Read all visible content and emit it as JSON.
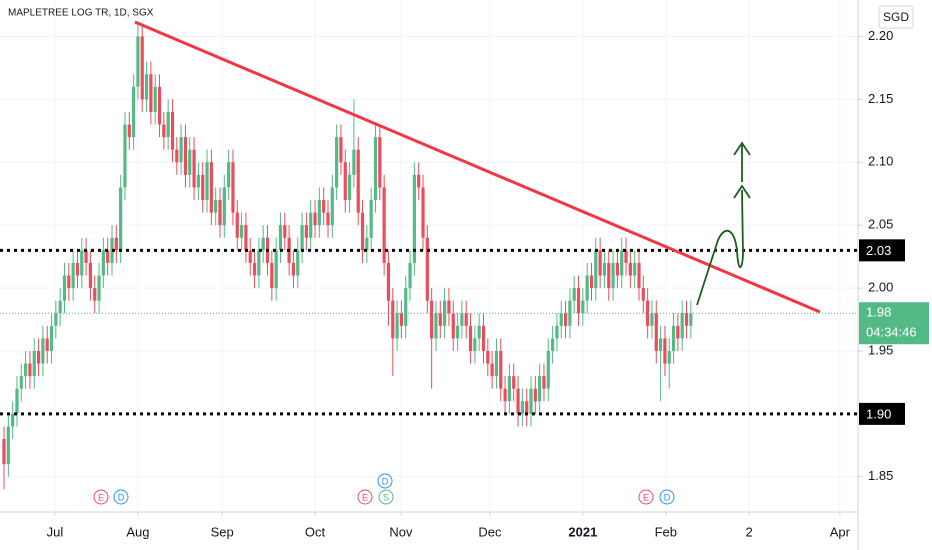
{
  "chart_data": {
    "type": "candlestick",
    "title": "MAPLETREE LOG TR, 1D, SGX",
    "currency": "SGD",
    "up_color": "#53b987",
    "down_color": "#eb4d5c",
    "xlim": [
      -0.93,
      197.7
    ],
    "ylim": [
      1.822,
      2.229
    ],
    "yticks": [
      {
        "value": 2.2,
        "label": "2.20"
      },
      2.15,
      {
        "value": 2.1,
        "label": "2.10"
      },
      2.05,
      {
        "value": 2.0,
        "label": "2.00"
      },
      1.95,
      1.85
    ],
    "xticks": [
      {
        "value": 11.8,
        "label": "Jul"
      },
      {
        "value": 31.0,
        "label": "Aug"
      },
      {
        "value": 50.5,
        "label": "Sep"
      },
      {
        "value": 72.0,
        "label": "Oct"
      },
      {
        "value": 91.9,
        "label": "Nov"
      },
      {
        "value": 112.5,
        "label": "Dec"
      },
      {
        "value": 134,
        "label": "2021"
      },
      {
        "value": 153.2,
        "label": "Feb"
      },
      {
        "value": 172.5,
        "label": "2"
      },
      {
        "value": 193.5,
        "label": "Apr"
      }
    ],
    "grid": true,
    "series": [
      {
        "open": [
          1.88,
          1.86,
          1.89,
          1.9,
          1.92,
          1.93,
          1.94,
          1.93,
          1.95,
          1.94,
          1.96,
          1.95,
          1.97,
          1.98,
          1.99,
          2.01,
          2.0,
          2.02,
          2.01,
          2.03,
          2.02,
          2.0,
          1.99,
          2.01,
          2.03,
          2.02,
          2.04,
          2.03,
          2.08,
          2.13,
          2.12,
          2.16,
          2.2,
          2.15,
          2.17,
          2.14,
          2.16,
          2.13,
          2.12,
          2.14,
          2.11,
          2.1,
          2.12,
          2.09,
          2.11,
          2.08,
          2.09,
          2.07,
          2.1,
          2.06,
          2.07,
          2.05,
          2.08,
          2.1,
          2.06,
          2.04,
          2.05,
          2.03,
          2.02,
          2.01,
          2.03,
          2.04,
          2.02,
          2.0,
          2.03,
          2.05,
          2.04,
          2.02,
          2.01,
          2.03,
          2.05,
          2.04,
          2.06,
          2.05,
          2.07,
          2.06,
          2.05,
          2.08,
          2.12,
          2.1,
          2.07,
          2.09,
          2.11,
          2.06,
          2.03,
          2.04,
          2.07,
          2.12,
          2.08,
          2.02,
          1.99,
          1.96,
          1.98,
          1.97,
          2.0,
          2.02,
          2.09,
          2.08,
          2.04,
          1.99,
          1.96,
          1.98,
          1.97,
          1.99,
          1.98,
          1.96,
          1.97,
          1.98,
          1.97,
          1.95,
          1.96,
          1.97,
          1.95,
          1.94,
          1.93,
          1.95,
          1.92,
          1.91,
          1.93,
          1.92,
          1.9,
          1.91,
          1.9,
          1.92,
          1.91,
          1.93,
          1.92,
          1.95,
          1.96,
          1.97,
          1.98,
          1.97,
          1.99,
          2.0,
          1.98,
          1.99,
          2.01,
          2.0,
          2.03,
          2.01,
          2.02,
          2.0,
          2.02,
          2.01,
          2.03,
          2.02,
          2.01,
          2.02,
          2.0,
          1.99,
          1.97,
          1.98,
          1.95,
          1.96,
          1.94,
          1.95,
          1.97,
          1.96,
          1.98,
          1.97
        ],
        "high": [
          1.89,
          1.9,
          1.91,
          1.93,
          1.94,
          1.95,
          1.95,
          1.96,
          1.96,
          1.97,
          1.97,
          1.98,
          1.99,
          2.0,
          2.02,
          2.02,
          2.03,
          2.03,
          2.04,
          2.04,
          2.03,
          2.01,
          2.02,
          2.04,
          2.04,
          2.05,
          2.05,
          2.09,
          2.14,
          2.14,
          2.17,
          2.21,
          2.21,
          2.18,
          2.18,
          2.17,
          2.17,
          2.14,
          2.15,
          2.15,
          2.12,
          2.13,
          2.13,
          2.12,
          2.12,
          2.1,
          2.1,
          2.11,
          2.11,
          2.08,
          2.08,
          2.09,
          2.11,
          2.11,
          2.07,
          2.06,
          2.06,
          2.04,
          2.03,
          2.04,
          2.05,
          2.05,
          2.03,
          2.04,
          2.06,
          2.06,
          2.05,
          2.03,
          2.04,
          2.06,
          2.06,
          2.07,
          2.07,
          2.08,
          2.08,
          2.07,
          2.09,
          2.13,
          2.13,
          2.11,
          2.1,
          2.15,
          2.12,
          2.07,
          2.05,
          2.08,
          2.13,
          2.13,
          2.09,
          2.03,
          2.0,
          1.99,
          1.99,
          2.01,
          2.03,
          2.1,
          2.1,
          2.09,
          2.05,
          2.0,
          1.99,
          1.99,
          2.0,
          2.0,
          1.99,
          1.98,
          1.99,
          1.99,
          1.98,
          1.97,
          1.98,
          1.98,
          1.96,
          1.95,
          1.96,
          1.96,
          1.93,
          1.94,
          1.94,
          1.93,
          1.92,
          1.92,
          1.93,
          1.93,
          1.94,
          1.94,
          1.96,
          1.97,
          1.98,
          1.99,
          1.99,
          2.0,
          2.01,
          2.01,
          2.0,
          2.02,
          2.02,
          2.04,
          2.04,
          2.03,
          2.03,
          2.03,
          2.03,
          2.04,
          2.04,
          2.03,
          2.03,
          2.03,
          2.01,
          2.0,
          1.99,
          1.99,
          1.97,
          1.97,
          1.96,
          1.98,
          1.98,
          1.99,
          1.99,
          1.99
        ],
        "low": [
          1.84,
          1.85,
          1.88,
          1.89,
          1.91,
          1.92,
          1.92,
          1.92,
          1.93,
          1.93,
          1.94,
          1.94,
          1.96,
          1.97,
          1.98,
          1.99,
          1.99,
          2.0,
          2.0,
          2.01,
          1.99,
          1.98,
          1.98,
          2.0,
          2.01,
          2.01,
          2.02,
          2.02,
          2.07,
          2.11,
          2.11,
          2.15,
          2.14,
          2.14,
          2.13,
          2.13,
          2.12,
          2.11,
          2.11,
          2.1,
          2.09,
          2.09,
          2.08,
          2.08,
          2.07,
          2.07,
          2.06,
          2.06,
          2.05,
          2.05,
          2.04,
          2.04,
          2.07,
          2.05,
          2.03,
          2.03,
          2.02,
          2.01,
          2.0,
          2.0,
          2.02,
          2.01,
          1.99,
          1.99,
          2.02,
          2.03,
          2.01,
          2.0,
          2.0,
          2.02,
          2.03,
          2.03,
          2.04,
          2.04,
          2.05,
          2.04,
          2.04,
          2.07,
          2.09,
          2.06,
          2.06,
          2.08,
          2.05,
          2.02,
          2.02,
          2.03,
          2.06,
          2.07,
          2.01,
          1.97,
          1.93,
          1.95,
          1.96,
          1.96,
          1.99,
          2.01,
          2.07,
          2.03,
          1.98,
          1.92,
          1.95,
          1.96,
          1.96,
          1.97,
          1.95,
          1.95,
          1.96,
          1.96,
          1.94,
          1.94,
          1.95,
          1.94,
          1.93,
          1.92,
          1.92,
          1.91,
          1.9,
          1.9,
          1.91,
          1.89,
          1.89,
          1.89,
          1.89,
          1.9,
          1.9,
          1.91,
          1.91,
          1.94,
          1.95,
          1.96,
          1.96,
          1.96,
          1.98,
          1.97,
          1.97,
          1.98,
          1.99,
          1.99,
          2.0,
          2.0,
          1.99,
          1.99,
          2.0,
          2.0,
          2.01,
          2.0,
          2.0,
          1.99,
          1.98,
          1.96,
          1.96,
          1.94,
          1.91,
          1.93,
          1.92,
          1.94,
          1.95,
          1.95,
          1.96,
          1.96
        ],
        "close": [
          1.86,
          1.89,
          1.9,
          1.92,
          1.93,
          1.94,
          1.93,
          1.95,
          1.94,
          1.96,
          1.95,
          1.97,
          1.98,
          1.99,
          2.01,
          2.0,
          2.02,
          2.01,
          2.03,
          2.02,
          2.0,
          1.99,
          2.01,
          2.03,
          2.02,
          2.04,
          2.03,
          2.08,
          2.13,
          2.12,
          2.16,
          2.2,
          2.15,
          2.17,
          2.14,
          2.16,
          2.13,
          2.12,
          2.14,
          2.11,
          2.1,
          2.12,
          2.09,
          2.11,
          2.08,
          2.09,
          2.07,
          2.1,
          2.06,
          2.07,
          2.05,
          2.08,
          2.1,
          2.06,
          2.04,
          2.05,
          2.03,
          2.02,
          2.01,
          2.03,
          2.04,
          2.02,
          2.0,
          2.03,
          2.05,
          2.04,
          2.02,
          2.01,
          2.03,
          2.05,
          2.04,
          2.06,
          2.05,
          2.07,
          2.06,
          2.05,
          2.08,
          2.12,
          2.1,
          2.07,
          2.09,
          2.11,
          2.06,
          2.03,
          2.04,
          2.07,
          2.12,
          2.08,
          2.02,
          1.99,
          1.96,
          1.98,
          1.97,
          2.0,
          2.02,
          2.09,
          2.08,
          2.04,
          1.99,
          1.96,
          1.98,
          1.97,
          1.99,
          1.98,
          1.96,
          1.97,
          1.98,
          1.97,
          1.95,
          1.96,
          1.97,
          1.95,
          1.94,
          1.93,
          1.95,
          1.92,
          1.91,
          1.93,
          1.92,
          1.9,
          1.91,
          1.9,
          1.92,
          1.91,
          1.93,
          1.92,
          1.95,
          1.96,
          1.97,
          1.98,
          1.97,
          1.99,
          2.0,
          1.98,
          1.99,
          2.01,
          2.0,
          2.03,
          2.01,
          2.02,
          2.0,
          2.02,
          2.01,
          2.03,
          2.02,
          2.01,
          2.02,
          2.0,
          1.99,
          1.97,
          1.98,
          1.95,
          1.96,
          1.94,
          1.95,
          1.97,
          1.96,
          1.98,
          1.97,
          1.98
        ]
      }
    ],
    "trendline": {
      "x": [
        30.3,
        188.9
      ],
      "y": [
        2.2115,
        1.981
      ],
      "color": "#f23645"
    },
    "price_lines": [
      {
        "value": 2.03,
        "label": "2.03"
      },
      {
        "value": 1.9,
        "label": "1.90"
      }
    ],
    "last_price": {
      "value": 1.98,
      "label": "1.98",
      "countdown": "04:34:46",
      "color": "#53b987"
    },
    "events": [
      "E",
      "D",
      "D",
      "E",
      "S",
      "E",
      "D"
    ]
  }
}
